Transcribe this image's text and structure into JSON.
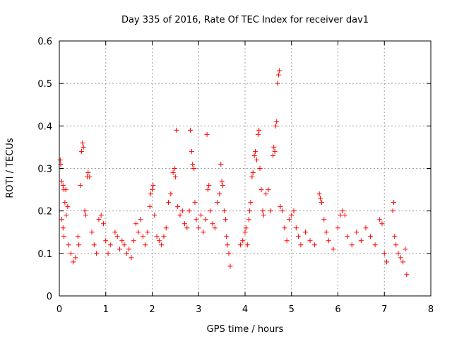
{
  "chart_data": {
    "type": "scatter",
    "title": "Day 335 of 2016, Rate Of TEC Index for receiver dav1",
    "xlabel": "GPS time / hours",
    "ylabel": "ROTI / TECUs",
    "xlim": [
      0,
      8
    ],
    "ylim": [
      0,
      0.6
    ],
    "x_ticks": [
      "0",
      "1",
      "2",
      "3",
      "4",
      "5",
      "6",
      "7",
      "8"
    ],
    "y_ticks": [
      "0",
      "0.1",
      "0.2",
      "0.3",
      "0.4",
      "0.5",
      "0.6"
    ],
    "grid": true,
    "legend": "none",
    "marker": "plus",
    "color": "#ff0000",
    "series": [
      {
        "points": [
          [
            0.02,
            0.32
          ],
          [
            0.03,
            0.31
          ],
          [
            0.05,
            0.27
          ],
          [
            0.08,
            0.26
          ],
          [
            0.1,
            0.25
          ],
          [
            0.14,
            0.25
          ],
          [
            0.12,
            0.22
          ],
          [
            0.18,
            0.21
          ],
          [
            0.15,
            0.19
          ],
          [
            0.05,
            0.18
          ],
          [
            0.08,
            0.16
          ],
          [
            0.1,
            0.14
          ],
          [
            0.2,
            0.12
          ],
          [
            0.25,
            0.1
          ],
          [
            0.3,
            0.08
          ],
          [
            0.35,
            0.09
          ],
          [
            0.4,
            0.14
          ],
          [
            0.42,
            0.12
          ],
          [
            0.45,
            0.26
          ],
          [
            0.48,
            0.34
          ],
          [
            0.5,
            0.36
          ],
          [
            0.52,
            0.35
          ],
          [
            0.55,
            0.2
          ],
          [
            0.57,
            0.19
          ],
          [
            0.6,
            0.28
          ],
          [
            0.62,
            0.29
          ],
          [
            0.65,
            0.28
          ],
          [
            0.7,
            0.15
          ],
          [
            0.75,
            0.12
          ],
          [
            0.8,
            0.1
          ],
          [
            0.85,
            0.18
          ],
          [
            0.9,
            0.19
          ],
          [
            0.95,
            0.17
          ],
          [
            1.0,
            0.13
          ],
          [
            1.05,
            0.1
          ],
          [
            1.1,
            0.12
          ],
          [
            1.2,
            0.15
          ],
          [
            1.25,
            0.14
          ],
          [
            1.3,
            0.11
          ],
          [
            1.35,
            0.13
          ],
          [
            1.4,
            0.12
          ],
          [
            1.45,
            0.1
          ],
          [
            1.5,
            0.11
          ],
          [
            1.55,
            0.09
          ],
          [
            1.6,
            0.13
          ],
          [
            1.65,
            0.17
          ],
          [
            1.7,
            0.15
          ],
          [
            1.75,
            0.18
          ],
          [
            1.8,
            0.14
          ],
          [
            1.85,
            0.12
          ],
          [
            1.9,
            0.15
          ],
          [
            1.95,
            0.21
          ],
          [
            1.97,
            0.24
          ],
          [
            2.0,
            0.25
          ],
          [
            2.02,
            0.26
          ],
          [
            2.05,
            0.19
          ],
          [
            2.1,
            0.14
          ],
          [
            2.15,
            0.13
          ],
          [
            2.2,
            0.12
          ],
          [
            2.25,
            0.14
          ],
          [
            2.3,
            0.16
          ],
          [
            2.35,
            0.22
          ],
          [
            2.4,
            0.24
          ],
          [
            2.45,
            0.29
          ],
          [
            2.48,
            0.3
          ],
          [
            2.5,
            0.28
          ],
          [
            2.52,
            0.39
          ],
          [
            2.55,
            0.21
          ],
          [
            2.6,
            0.19
          ],
          [
            2.65,
            0.2
          ],
          [
            2.7,
            0.17
          ],
          [
            2.75,
            0.16
          ],
          [
            2.8,
            0.2
          ],
          [
            2.82,
            0.39
          ],
          [
            2.85,
            0.34
          ],
          [
            2.87,
            0.31
          ],
          [
            2.9,
            0.3
          ],
          [
            2.92,
            0.22
          ],
          [
            2.95,
            0.18
          ],
          [
            3.0,
            0.16
          ],
          [
            3.05,
            0.19
          ],
          [
            3.1,
            0.15
          ],
          [
            3.15,
            0.18
          ],
          [
            3.18,
            0.38
          ],
          [
            3.2,
            0.25
          ],
          [
            3.22,
            0.26
          ],
          [
            3.25,
            0.2
          ],
          [
            3.3,
            0.17
          ],
          [
            3.35,
            0.16
          ],
          [
            3.4,
            0.22
          ],
          [
            3.45,
            0.24
          ],
          [
            3.48,
            0.31
          ],
          [
            3.5,
            0.27
          ],
          [
            3.52,
            0.26
          ],
          [
            3.55,
            0.2
          ],
          [
            3.58,
            0.18
          ],
          [
            3.6,
            0.14
          ],
          [
            3.62,
            0.12
          ],
          [
            3.65,
            0.1
          ],
          [
            3.68,
            0.07
          ],
          [
            3.9,
            0.12
          ],
          [
            3.95,
            0.13
          ],
          [
            4.0,
            0.15
          ],
          [
            4.02,
            0.16
          ],
          [
            4.05,
            0.12
          ],
          [
            4.08,
            0.18
          ],
          [
            4.1,
            0.2
          ],
          [
            4.12,
            0.22
          ],
          [
            4.15,
            0.28
          ],
          [
            4.17,
            0.29
          ],
          [
            4.2,
            0.33
          ],
          [
            4.22,
            0.34
          ],
          [
            4.25,
            0.32
          ],
          [
            4.28,
            0.38
          ],
          [
            4.3,
            0.39
          ],
          [
            4.32,
            0.3
          ],
          [
            4.35,
            0.25
          ],
          [
            4.38,
            0.2
          ],
          [
            4.4,
            0.19
          ],
          [
            4.45,
            0.24
          ],
          [
            4.5,
            0.25
          ],
          [
            4.55,
            0.2
          ],
          [
            4.6,
            0.33
          ],
          [
            4.62,
            0.35
          ],
          [
            4.64,
            0.34
          ],
          [
            4.66,
            0.4
          ],
          [
            4.68,
            0.41
          ],
          [
            4.7,
            0.5
          ],
          [
            4.72,
            0.52
          ],
          [
            4.74,
            0.53
          ],
          [
            4.76,
            0.21
          ],
          [
            4.8,
            0.2
          ],
          [
            4.85,
            0.16
          ],
          [
            4.9,
            0.13
          ],
          [
            4.95,
            0.18
          ],
          [
            5.0,
            0.19
          ],
          [
            5.05,
            0.2
          ],
          [
            5.1,
            0.16
          ],
          [
            5.15,
            0.14
          ],
          [
            5.2,
            0.12
          ],
          [
            5.3,
            0.15
          ],
          [
            5.4,
            0.13
          ],
          [
            5.5,
            0.12
          ],
          [
            5.6,
            0.24
          ],
          [
            5.62,
            0.23
          ],
          [
            5.65,
            0.22
          ],
          [
            5.7,
            0.18
          ],
          [
            5.75,
            0.15
          ],
          [
            5.8,
            0.13
          ],
          [
            5.9,
            0.11
          ],
          [
            6.0,
            0.16
          ],
          [
            6.05,
            0.19
          ],
          [
            6.1,
            0.2
          ],
          [
            6.15,
            0.19
          ],
          [
            6.2,
            0.14
          ],
          [
            6.3,
            0.12
          ],
          [
            6.4,
            0.15
          ],
          [
            6.5,
            0.13
          ],
          [
            6.6,
            0.16
          ],
          [
            6.7,
            0.14
          ],
          [
            6.8,
            0.12
          ],
          [
            6.9,
            0.18
          ],
          [
            6.95,
            0.17
          ],
          [
            7.0,
            0.1
          ],
          [
            7.05,
            0.08
          ],
          [
            7.18,
            0.2
          ],
          [
            7.2,
            0.22
          ],
          [
            7.22,
            0.14
          ],
          [
            7.25,
            0.12
          ],
          [
            7.3,
            0.1
          ],
          [
            7.35,
            0.09
          ],
          [
            7.4,
            0.08
          ],
          [
            7.45,
            0.11
          ],
          [
            7.48,
            0.05
          ]
        ]
      }
    ]
  }
}
